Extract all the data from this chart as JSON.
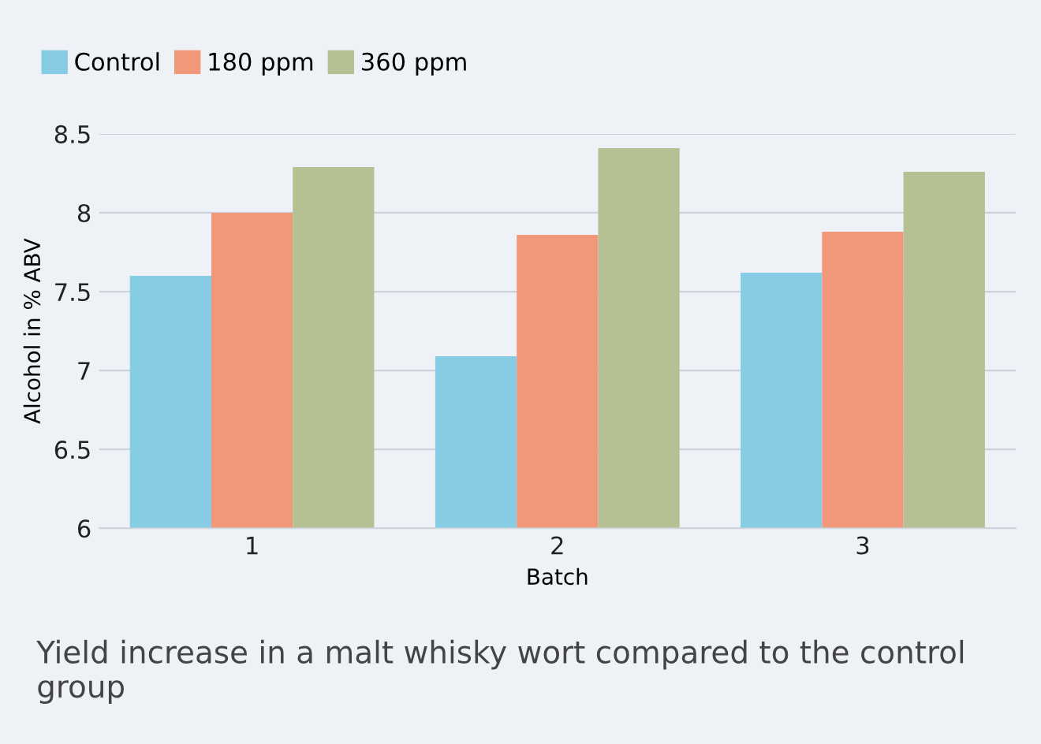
{
  "chart_data": {
    "type": "bar",
    "categories": [
      "1",
      "2",
      "3"
    ],
    "series": [
      {
        "name": "Control",
        "color": "#85cce4",
        "values": [
          7.6,
          7.09,
          7.62
        ]
      },
      {
        "name": "180 ppm",
        "color": "#f2987a",
        "values": [
          8.0,
          7.86,
          7.88
        ]
      },
      {
        "name": "360 ppm",
        "color": "#b5c192",
        "values": [
          8.29,
          8.41,
          8.26
        ]
      }
    ],
    "xlabel": "Batch",
    "ylabel": "Alcohol in % ABV",
    "ylim": [
      6,
      8.5
    ],
    "yticks": [
      6,
      6.5,
      7,
      7.5,
      8,
      8.5
    ],
    "grid": "y",
    "legend": "top left",
    "annotations": [
      "Yield increase in a malt whisky wort compared to the control group"
    ]
  }
}
